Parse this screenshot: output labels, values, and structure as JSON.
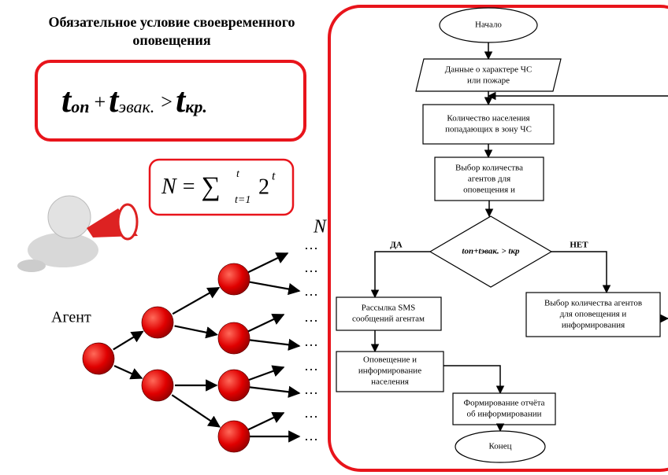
{
  "title": [
    "Обязательное условие своевременного",
    "оповещения"
  ],
  "condition_formula": {
    "t1": "t",
    "sub1": "оп",
    "plus": "+",
    "t2": "t",
    "sub2": "эвак.",
    "gt": ">",
    "t3": "t",
    "sub3": "кр."
  },
  "sum_formula": {
    "lhs": "N",
    "eq": "=",
    "sum": "∑",
    "upper": "t",
    "lower": "t=1",
    "base": "2",
    "exp": "t"
  },
  "tree": {
    "label": "N",
    "agent_label": "Агент",
    "ellipsis": "…"
  },
  "flowchart": {
    "start": "Начало",
    "input": [
      "Данные о характере ЧС",
      "или пожаре"
    ],
    "population": [
      "Количество населения",
      "попадающих в зону ЧС"
    ],
    "select_agents": [
      "Выбор количества",
      "агентов для",
      "оповещения и"
    ],
    "decision": "tоп+tэвак. > tкр",
    "yes": "ДА",
    "no": "НЕТ",
    "sms": [
      "Рассылка SMS",
      "сообщений агентам"
    ],
    "select_agents_no": [
      "Выбор количества агентов",
      "для оповещения и",
      "информирования"
    ],
    "notify": [
      "Оповещение и",
      "информирование",
      "населения"
    ],
    "report": [
      "Формирование отчёта",
      "об информировании"
    ],
    "end": "Конец"
  }
}
